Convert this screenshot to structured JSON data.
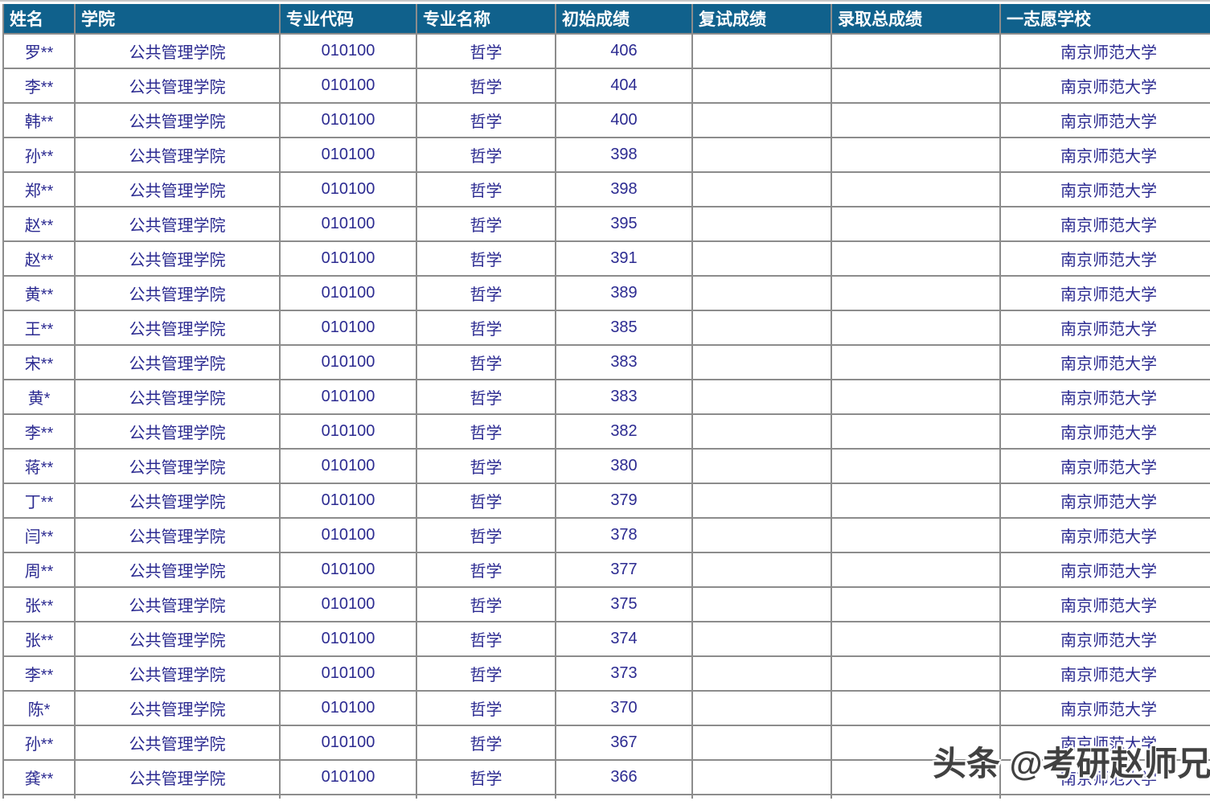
{
  "table": {
    "headers": [
      "姓名",
      "学院",
      "专业代码",
      "专业名称",
      "初始成绩",
      "复试成绩",
      "录取总成绩",
      "一志愿学校"
    ],
    "rows": [
      {
        "name": "罗**",
        "college": "公共管理学院",
        "major_code": "010100",
        "major_name": "哲学",
        "initial_score": "406",
        "retest_score": "",
        "total_score": "",
        "first_choice_school": "南京师范大学"
      },
      {
        "name": "李**",
        "college": "公共管理学院",
        "major_code": "010100",
        "major_name": "哲学",
        "initial_score": "404",
        "retest_score": "",
        "total_score": "",
        "first_choice_school": "南京师范大学"
      },
      {
        "name": "韩**",
        "college": "公共管理学院",
        "major_code": "010100",
        "major_name": "哲学",
        "initial_score": "400",
        "retest_score": "",
        "total_score": "",
        "first_choice_school": "南京师范大学"
      },
      {
        "name": "孙**",
        "college": "公共管理学院",
        "major_code": "010100",
        "major_name": "哲学",
        "initial_score": "398",
        "retest_score": "",
        "total_score": "",
        "first_choice_school": "南京师范大学"
      },
      {
        "name": "郑**",
        "college": "公共管理学院",
        "major_code": "010100",
        "major_name": "哲学",
        "initial_score": "398",
        "retest_score": "",
        "total_score": "",
        "first_choice_school": "南京师范大学"
      },
      {
        "name": "赵**",
        "college": "公共管理学院",
        "major_code": "010100",
        "major_name": "哲学",
        "initial_score": "395",
        "retest_score": "",
        "total_score": "",
        "first_choice_school": "南京师范大学"
      },
      {
        "name": "赵**",
        "college": "公共管理学院",
        "major_code": "010100",
        "major_name": "哲学",
        "initial_score": "391",
        "retest_score": "",
        "total_score": "",
        "first_choice_school": "南京师范大学"
      },
      {
        "name": "黄**",
        "college": "公共管理学院",
        "major_code": "010100",
        "major_name": "哲学",
        "initial_score": "389",
        "retest_score": "",
        "total_score": "",
        "first_choice_school": "南京师范大学"
      },
      {
        "name": "王**",
        "college": "公共管理学院",
        "major_code": "010100",
        "major_name": "哲学",
        "initial_score": "385",
        "retest_score": "",
        "total_score": "",
        "first_choice_school": "南京师范大学"
      },
      {
        "name": "宋**",
        "college": "公共管理学院",
        "major_code": "010100",
        "major_name": "哲学",
        "initial_score": "383",
        "retest_score": "",
        "total_score": "",
        "first_choice_school": "南京师范大学"
      },
      {
        "name": "黄*",
        "college": "公共管理学院",
        "major_code": "010100",
        "major_name": "哲学",
        "initial_score": "383",
        "retest_score": "",
        "total_score": "",
        "first_choice_school": "南京师范大学"
      },
      {
        "name": "李**",
        "college": "公共管理学院",
        "major_code": "010100",
        "major_name": "哲学",
        "initial_score": "382",
        "retest_score": "",
        "total_score": "",
        "first_choice_school": "南京师范大学"
      },
      {
        "name": "蒋**",
        "college": "公共管理学院",
        "major_code": "010100",
        "major_name": "哲学",
        "initial_score": "380",
        "retest_score": "",
        "total_score": "",
        "first_choice_school": "南京师范大学"
      },
      {
        "name": "丁**",
        "college": "公共管理学院",
        "major_code": "010100",
        "major_name": "哲学",
        "initial_score": "379",
        "retest_score": "",
        "total_score": "",
        "first_choice_school": "南京师范大学"
      },
      {
        "name": "闫**",
        "college": "公共管理学院",
        "major_code": "010100",
        "major_name": "哲学",
        "initial_score": "378",
        "retest_score": "",
        "total_score": "",
        "first_choice_school": "南京师范大学"
      },
      {
        "name": "周**",
        "college": "公共管理学院",
        "major_code": "010100",
        "major_name": "哲学",
        "initial_score": "377",
        "retest_score": "",
        "total_score": "",
        "first_choice_school": "南京师范大学"
      },
      {
        "name": "张**",
        "college": "公共管理学院",
        "major_code": "010100",
        "major_name": "哲学",
        "initial_score": "375",
        "retest_score": "",
        "total_score": "",
        "first_choice_school": "南京师范大学"
      },
      {
        "name": "张**",
        "college": "公共管理学院",
        "major_code": "010100",
        "major_name": "哲学",
        "initial_score": "374",
        "retest_score": "",
        "total_score": "",
        "first_choice_school": "南京师范大学"
      },
      {
        "name": "李**",
        "college": "公共管理学院",
        "major_code": "010100",
        "major_name": "哲学",
        "initial_score": "373",
        "retest_score": "",
        "total_score": "",
        "first_choice_school": "南京师范大学"
      },
      {
        "name": "陈*",
        "college": "公共管理学院",
        "major_code": "010100",
        "major_name": "哲学",
        "initial_score": "370",
        "retest_score": "",
        "total_score": "",
        "first_choice_school": "南京师范大学"
      },
      {
        "name": "孙**",
        "college": "公共管理学院",
        "major_code": "010100",
        "major_name": "哲学",
        "initial_score": "367",
        "retest_score": "",
        "total_score": "",
        "first_choice_school": "南京师范大学"
      },
      {
        "name": "龚**",
        "college": "公共管理学院",
        "major_code": "010100",
        "major_name": "哲学",
        "initial_score": "366",
        "retest_score": "",
        "total_score": "",
        "first_choice_school": "南京师范大学"
      }
    ]
  },
  "watermark": {
    "text": "头条 @考研赵师兄"
  },
  "colors": {
    "header_bg": "#10618c",
    "header_text": "#ffffff",
    "cell_text": "#2c2b91",
    "border": "#8c8c8c",
    "watermark": "#414141"
  }
}
